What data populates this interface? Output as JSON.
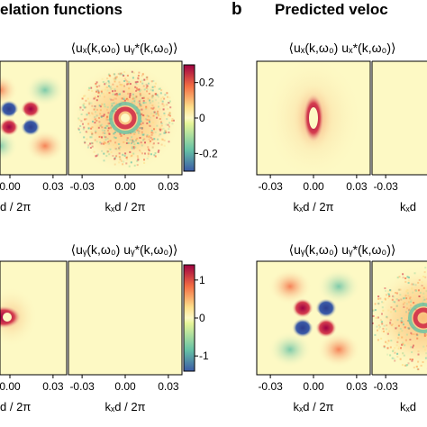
{
  "header": {
    "left_title": "elation functions",
    "panel_label_b": "b",
    "right_title": "Predicted veloc"
  },
  "panel_titles": {
    "uxuy": "⟨uₓ(k,ω₀) uᵧ*(k,ω₀)⟩",
    "uxux": "⟨uₓ(k,ω₀) uₓ*(k,ω₀)⟩",
    "uyuy": "⟨uᵧ(k,ω₀) uᵧ*(k,ω₀)⟩"
  },
  "axis_label_text": "kₓd / 2π",
  "axis_label_partial": "d / 2π",
  "axis_label_cut": "kₓd",
  "colors": {
    "high": "#9e0142",
    "mid_high": "#f46d43",
    "center": "#fdf9c4",
    "mid_low": "#66c2a5",
    "low": "#3b5ba7"
  },
  "chart_data": [
    {
      "type": "heatmap",
      "title": "⟨uₓ(k,ω₀) uᵧ*(k,ω₀)⟩",
      "xlabel": "kₓd / 2π",
      "x_ticks": [
        "-0.03",
        "0.00",
        "0.03"
      ],
      "colorbar": {
        "ticks": [
          "0.2",
          "0",
          "-0.2"
        ],
        "range": [
          -0.3,
          0.3
        ]
      },
      "pattern": "quadrupole"
    },
    {
      "type": "heatmap",
      "title": "⟨uᵧ(k,ω₀) uᵧ*(k,ω₀)⟩",
      "xlabel": "kₓd / 2π",
      "x_ticks": [
        "-0.03",
        "0.00",
        "0.03"
      ],
      "colorbar": {
        "ticks": [
          "1",
          "0",
          "-1"
        ],
        "range": [
          -1.4,
          1.4
        ]
      },
      "pattern": "horizontal-dipole"
    },
    {
      "type": "heatmap",
      "title": "⟨uₓ(k,ω₀) uₓ*(k,ω₀)⟩",
      "xlabel": "kₓd / 2π",
      "x_ticks": [
        "-0.03",
        "0.00",
        "0.03"
      ],
      "pattern": "vertical-dipole"
    },
    {
      "type": "heatmap",
      "title": "⟨uᵧ(k,ω₀) uᵧ*(k,ω₀)⟩",
      "xlabel": "kₓd / 2π",
      "x_ticks": [
        "-0.03",
        "0.00",
        "0.03"
      ],
      "pattern": "quadrupole"
    }
  ]
}
